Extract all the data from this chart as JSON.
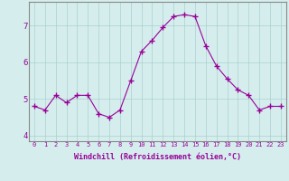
{
  "x": [
    0,
    1,
    2,
    3,
    4,
    5,
    6,
    7,
    8,
    9,
    10,
    11,
    12,
    13,
    14,
    15,
    16,
    17,
    18,
    19,
    20,
    21,
    22,
    23
  ],
  "y": [
    4.8,
    4.7,
    5.1,
    4.9,
    5.1,
    5.1,
    4.6,
    4.5,
    4.7,
    5.5,
    6.3,
    6.6,
    6.95,
    7.25,
    7.3,
    7.25,
    6.45,
    5.9,
    5.55,
    5.25,
    5.1,
    4.7,
    4.8,
    4.8
  ],
  "line_color": "#990099",
  "marker": "+",
  "marker_size": 5,
  "bg_color": "#d5eeed",
  "xlabel": "Windchill (Refroidissement éolien,°C)",
  "xlim": [
    -0.5,
    23.5
  ],
  "ylim": [
    3.85,
    7.65
  ],
  "yticks": [
    4,
    5,
    6,
    7
  ],
  "xticks": [
    0,
    1,
    2,
    3,
    4,
    5,
    6,
    7,
    8,
    9,
    10,
    11,
    12,
    13,
    14,
    15,
    16,
    17,
    18,
    19,
    20,
    21,
    22,
    23
  ],
  "xtick_labels": [
    "0",
    "1",
    "2",
    "3",
    "4",
    "5",
    "6",
    "7",
    "8",
    "9",
    "10",
    "11",
    "12",
    "13",
    "14",
    "15",
    "16",
    "17",
    "18",
    "19",
    "20",
    "21",
    "22",
    "23"
  ],
  "tick_color": "#990099",
  "label_color": "#990099",
  "grid_color": "#aacfcf",
  "spine_color": "#888888"
}
